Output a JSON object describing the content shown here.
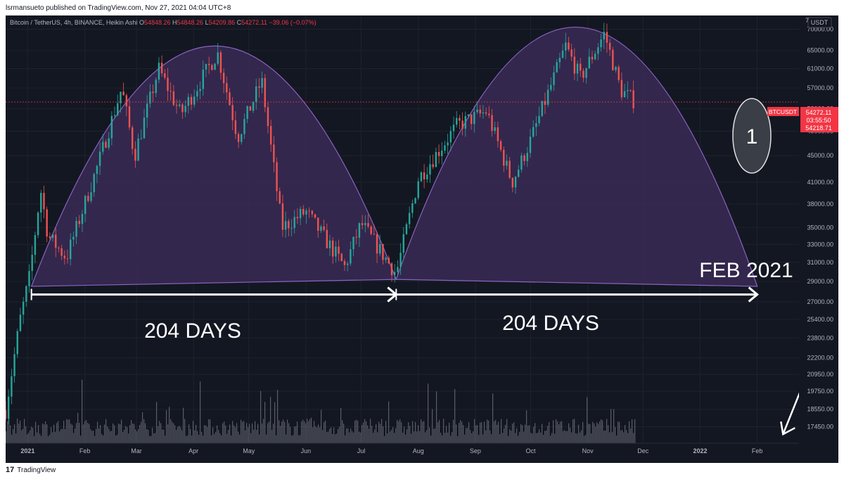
{
  "publish_line": "lsrmansueto published on TradingView.com, Nov 27, 2021 04:04 UTC+8",
  "legend": {
    "symbol": "Bitcoin / TetherUS, 4h, BINANCE, Heikin Ashi",
    "open_label": "O",
    "open": "54848.26",
    "high_label": "H",
    "high": "54848.26",
    "low_label": "L",
    "low": "54209.86",
    "close_label": "C",
    "close": "54272.11",
    "change": "−39.06 (−0.07%)"
  },
  "price_axis": {
    "currency": "USDT",
    "top_partial": "7",
    "ticks": [
      "70000.00",
      "65000.00",
      "61000.00",
      "57000.00",
      "53000.00",
      "49000.00",
      "45000.00",
      "41000.00",
      "38000.00",
      "35000.00",
      "33000.00",
      "31000.00",
      "29000.00",
      "27000.00",
      "25400.00",
      "23800.00",
      "22200.00",
      "20950.00",
      "19750.00",
      "18550.00",
      "17450.00"
    ]
  },
  "price_tag": {
    "symbol": "BTCUSDT",
    "price": "54272.11",
    "countdown": "03:55:50",
    "low": "54218.71"
  },
  "time_axis": [
    "2021",
    "Feb",
    "Mar",
    "Apr",
    "May",
    "Jun",
    "Jul",
    "Aug",
    "Sep",
    "Oct",
    "Nov",
    "Dec",
    "2022",
    "Feb"
  ],
  "annotations": {
    "circle_label": "1",
    "days_left": "204 DAYS",
    "days_right": "204 DAYS",
    "target": "FEB 2021"
  },
  "colors": {
    "background": "#131722",
    "up": "#26a69a",
    "down": "#ef5350",
    "arc_fill": "#3a2a55",
    "arc_stroke": "#8a63c2",
    "annotation": "#ffffff",
    "price_tag": "#f23645"
  },
  "footer": {
    "logo": "17",
    "brand": "TradingView"
  },
  "chart_data": {
    "type": "candlestick",
    "title": "Bitcoin / TetherUS, 4h, BINANCE, Heikin Ashi",
    "interval": "4h",
    "y_unit": "USDT",
    "y_scale": "log",
    "ylim": [
      16800,
      72000
    ],
    "x_range": [
      "2020-12-20",
      "2022-03-01"
    ],
    "approx_close_path": [
      {
        "x": "2020-12-20",
        "y": 18500
      },
      {
        "x": "2020-12-28",
        "y": 25500
      },
      {
        "x": "2021-01-02",
        "y": 29500
      },
      {
        "x": "2021-01-08",
        "y": 40000
      },
      {
        "x": "2021-01-12",
        "y": 34000
      },
      {
        "x": "2021-01-22",
        "y": 31500
      },
      {
        "x": "2021-02-08",
        "y": 43500
      },
      {
        "x": "2021-02-21",
        "y": 57000
      },
      {
        "x": "2021-02-28",
        "y": 45000
      },
      {
        "x": "2021-03-13",
        "y": 61000
      },
      {
        "x": "2021-03-25",
        "y": 52000
      },
      {
        "x": "2021-04-14",
        "y": 64500
      },
      {
        "x": "2021-04-25",
        "y": 48000
      },
      {
        "x": "2021-05-08",
        "y": 58500
      },
      {
        "x": "2021-05-19",
        "y": 35000
      },
      {
        "x": "2021-06-01",
        "y": 37000
      },
      {
        "x": "2021-06-22",
        "y": 30500
      },
      {
        "x": "2021-07-01",
        "y": 35500
      },
      {
        "x": "2021-07-20",
        "y": 29800
      },
      {
        "x": "2021-08-01",
        "y": 41500
      },
      {
        "x": "2021-08-22",
        "y": 50000
      },
      {
        "x": "2021-09-07",
        "y": 52500
      },
      {
        "x": "2021-09-21",
        "y": 41000
      },
      {
        "x": "2021-10-01",
        "y": 47500
      },
      {
        "x": "2021-10-20",
        "y": 66000
      },
      {
        "x": "2021-10-28",
        "y": 59000
      },
      {
        "x": "2021-11-10",
        "y": 69000
      },
      {
        "x": "2021-11-19",
        "y": 56500
      },
      {
        "x": "2021-11-27",
        "y": 54272
      }
    ],
    "last_price": 54272.11,
    "arcs": [
      {
        "start": "2021-01-03",
        "end": "2021-07-20",
        "peak": 66000,
        "base_start": 28500,
        "base_end": 29200
      },
      {
        "start": "2021-07-20",
        "end": "2022-02-01",
        "peak": 70500,
        "base_start": 29200,
        "base_end": 28500
      }
    ],
    "arrows": [
      {
        "from": "2021-01-03",
        "to": "2021-07-20",
        "price": 27700,
        "label": "204 DAYS"
      },
      {
        "from": "2021-07-20",
        "to": "2022-02-01",
        "price": 27700,
        "label": "204 DAYS"
      }
    ],
    "target_arrow": {
      "from_price": 30500,
      "to_date": "2022-02-15",
      "to_price": 17000,
      "label": "FEB 2021"
    }
  }
}
